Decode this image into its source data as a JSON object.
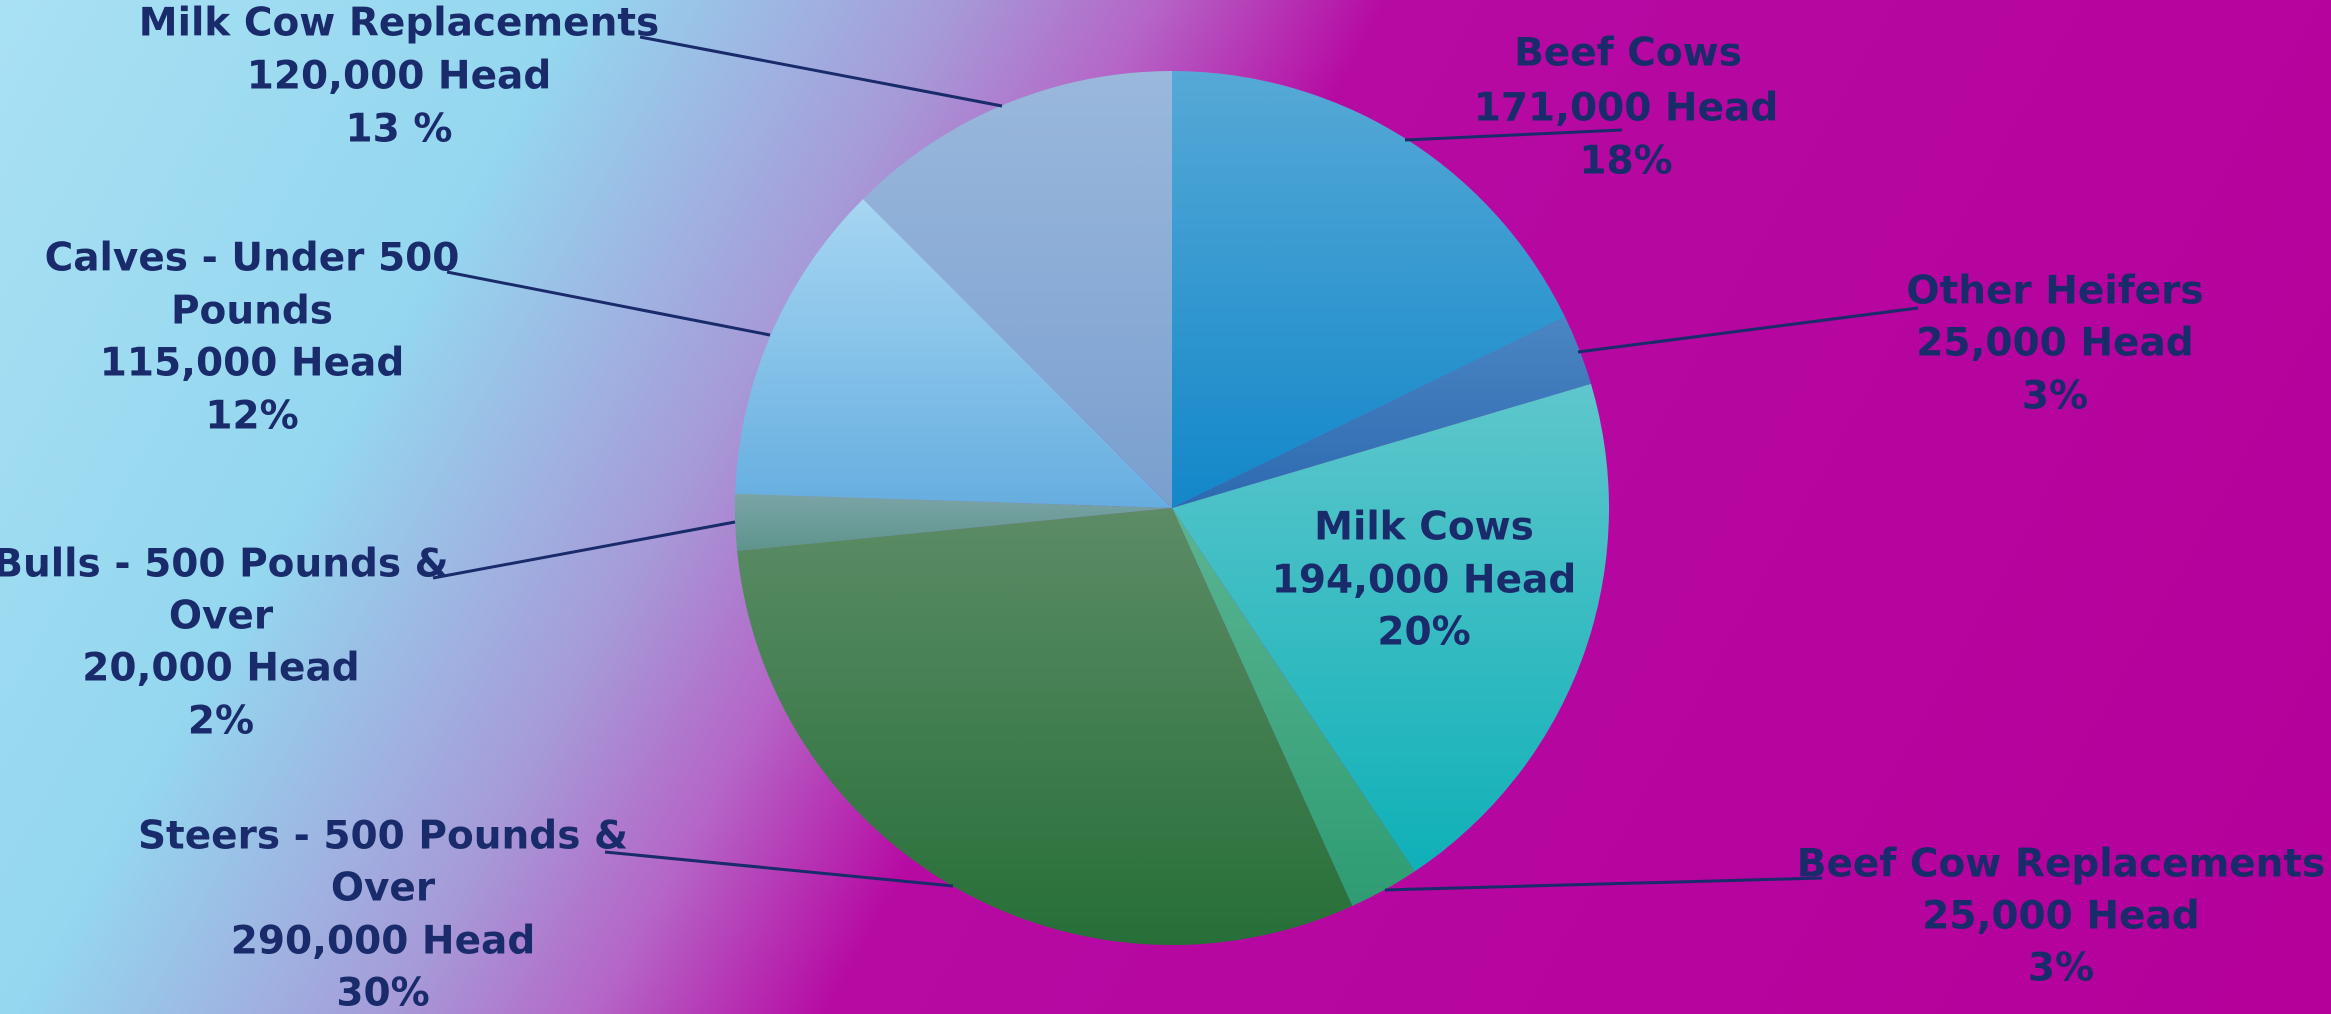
{
  "chart_data": {
    "type": "pie",
    "unit": "Head",
    "slices": [
      {
        "label": "Beef Cows",
        "value": 171000,
        "value_text": "171,000 Head",
        "percent_text": "18%",
        "color_top": "#56a9d6",
        "color_bottom": "#1287c9"
      },
      {
        "label": "Other Heifers",
        "value": 25000,
        "value_text": "25,000 Head",
        "percent_text": "3%",
        "color_top": "#4a86c2",
        "color_bottom": "#2d69b0"
      },
      {
        "label": "Milk Cows",
        "value": 194000,
        "value_text": "194,000 Head",
        "percent_text": "20%",
        "color_top": "#5ec7cc",
        "color_bottom": "#0fb0b8"
      },
      {
        "label": "Beef Cow Replacements",
        "value": 25000,
        "value_text": "25,000 Head",
        "percent_text": "3%",
        "color_top": "#5ab592",
        "color_bottom": "#2e9c73"
      },
      {
        "label": "Steers - 500 Pounds & Over",
        "value": 290000,
        "value_text": "290,000 Head",
        "percent_text": "30%",
        "color_top": "#5c8c66",
        "color_bottom": "#266f38"
      },
      {
        "label": "Bulls - 500 Pounds & Over",
        "value": 20000,
        "value_text": "20,000 Head",
        "percent_text": "2%",
        "color_top": "#7aa4a6",
        "color_bottom": "#5e948d"
      },
      {
        "label": "Calves - Under 500 Pounds",
        "value": 115000,
        "value_text": "115,000 Head",
        "percent_text": "12%",
        "color_top": "#a6d6f2",
        "color_bottom": "#66aee0"
      },
      {
        "label": "Milk Cow Replacements",
        "value": 120000,
        "value_text": "120,000 Head",
        "percent_text": "13 %",
        "color_top": "#9ab8dc",
        "color_bottom": "#7a9fcf"
      }
    ]
  }
}
